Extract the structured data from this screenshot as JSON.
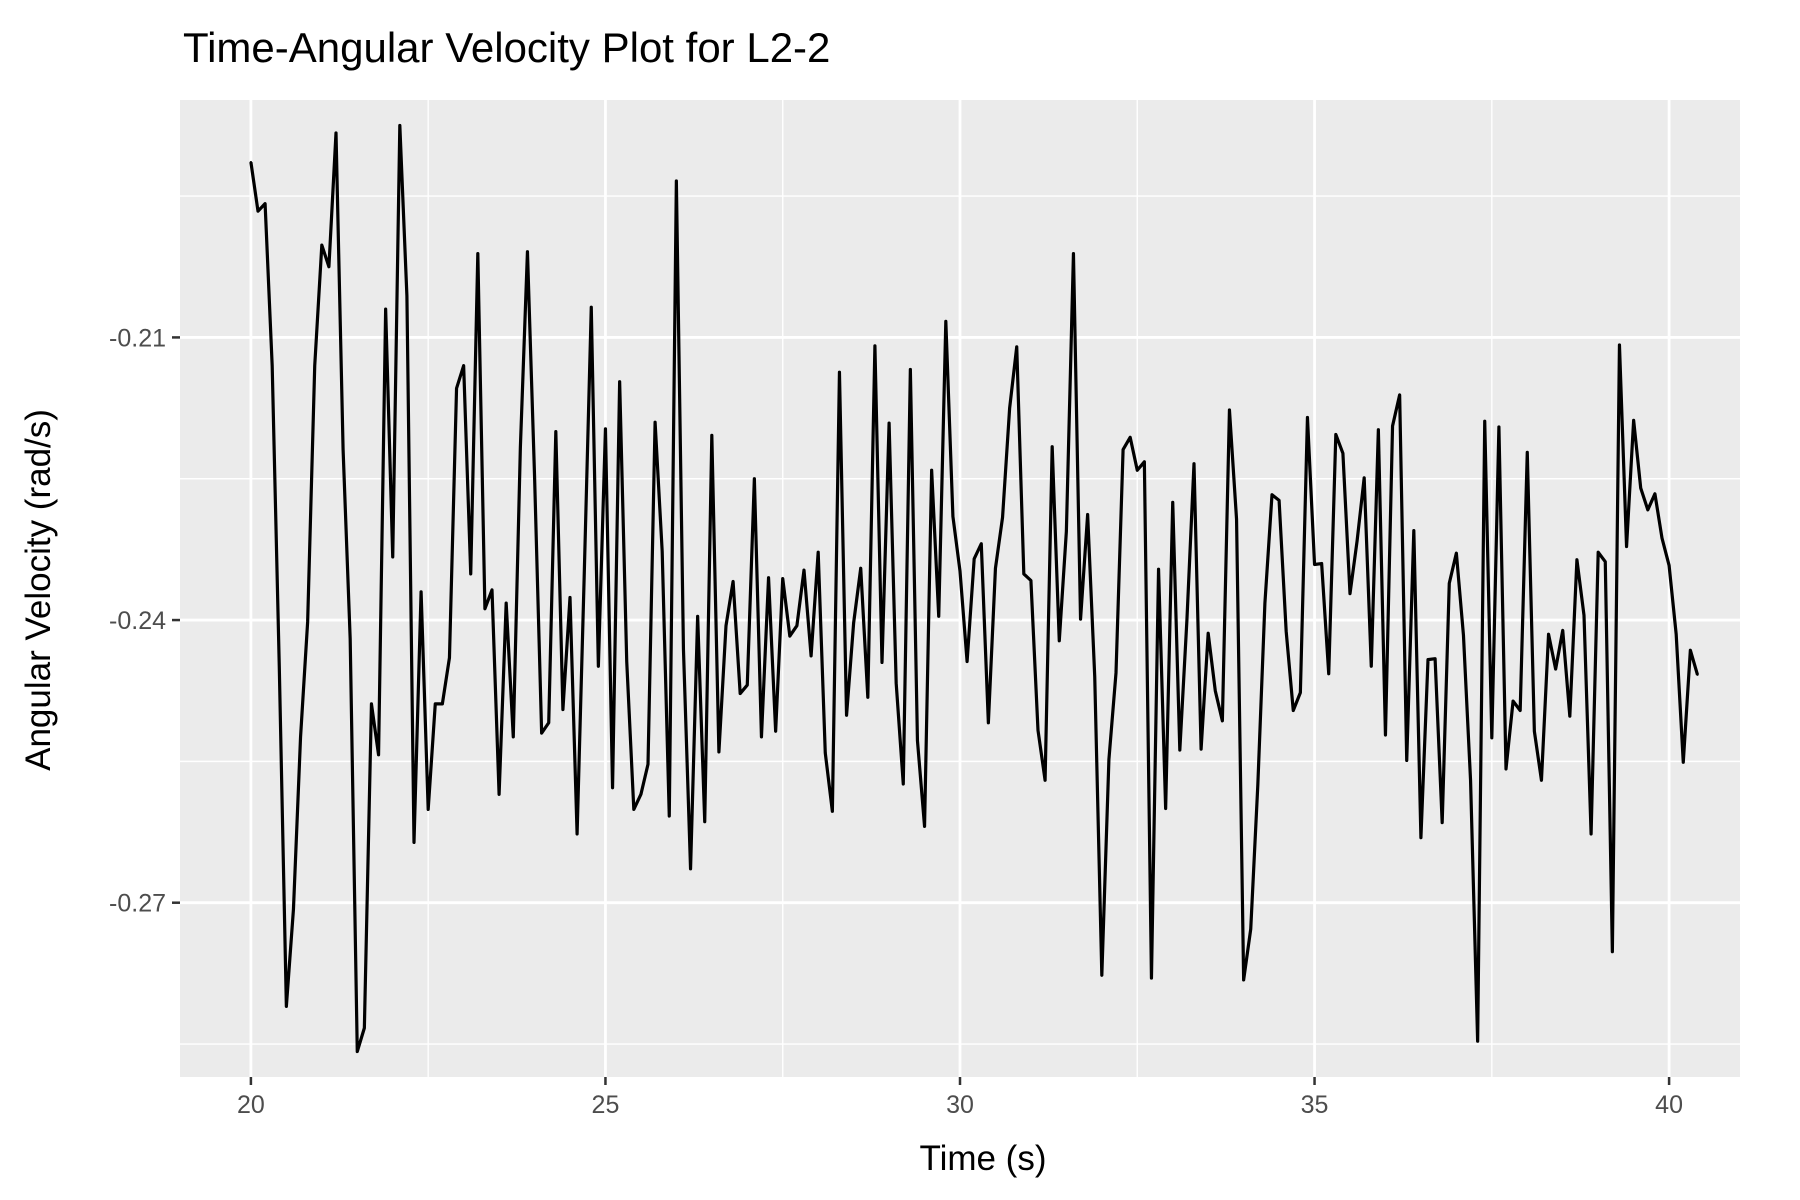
{
  "chart_data": {
    "type": "line",
    "title": "Time-Angular Velocity Plot for L2-2",
    "xlabel": "Time (s)",
    "ylabel": "Angular Velocity (rad/s)",
    "xlim": [
      19.0,
      41.0
    ],
    "ylim": [
      -0.2885,
      -0.1848
    ],
    "x_ticks": [
      20,
      25,
      30,
      35,
      40
    ],
    "x_tick_labels": [
      "20",
      "25",
      "30",
      "35",
      "40"
    ],
    "y_ticks": [
      -0.27,
      -0.24,
      -0.21
    ],
    "y_tick_labels": [
      "-0.27",
      "-0.24",
      "-0.21"
    ],
    "grid": true,
    "colors": {
      "panel": "#ebebeb",
      "grid": "#ffffff",
      "line": "#000000",
      "tick_label": "#4d4d4d"
    },
    "x_start": 20.0,
    "x_step": 0.1,
    "series": [
      {
        "name": "L2-2",
        "values": [
          -0.1914,
          -0.1966,
          -0.1958,
          -0.213,
          -0.2449,
          -0.281,
          -0.2707,
          -0.2524,
          -0.2402,
          -0.213,
          -0.2002,
          -0.2025,
          -0.1883,
          -0.2219,
          -0.242,
          -0.2858,
          -0.2833,
          -0.2489,
          -0.2543,
          -0.207,
          -0.2333,
          -0.1875,
          -0.2056,
          -0.2636,
          -0.237,
          -0.2601,
          -0.2489,
          -0.2489,
          -0.244,
          -0.2154,
          -0.213,
          -0.2351,
          -0.2011,
          -0.2388,
          -0.2368,
          -0.2585,
          -0.2382,
          -0.2524,
          -0.2217,
          -0.2009,
          -0.2247,
          -0.252,
          -0.2509,
          -0.22,
          -0.2495,
          -0.2376,
          -0.2627,
          -0.2354,
          -0.2068,
          -0.2449,
          -0.2197,
          -0.2578,
          -0.2147,
          -0.2444,
          -0.2601,
          -0.2585,
          -0.2553,
          -0.219,
          -0.2327,
          -0.2608,
          -0.1934,
          -0.2431,
          -0.2664,
          -0.2396,
          -0.2614,
          -0.2204,
          -0.254,
          -0.2406,
          -0.2359,
          -0.2478,
          -0.2469,
          -0.225,
          -0.2524,
          -0.2355,
          -0.2518,
          -0.2356,
          -0.2417,
          -0.2406,
          -0.2347,
          -0.2438,
          -0.2328,
          -0.2541,
          -0.2603,
          -0.2137,
          -0.2501,
          -0.2403,
          -0.2345,
          -0.2482,
          -0.2109,
          -0.2445,
          -0.2191,
          -0.2467,
          -0.2574,
          -0.2134,
          -0.2528,
          -0.2619,
          -0.2241,
          -0.2396,
          -0.2083,
          -0.229,
          -0.2348,
          -0.2444,
          -0.2335,
          -0.2319,
          -0.2509,
          -0.2345,
          -0.2291,
          -0.2175,
          -0.211,
          -0.2351,
          -0.2358,
          -0.2517,
          -0.257,
          -0.2216,
          -0.2422,
          -0.2306,
          -0.2011,
          -0.2399,
          -0.2288,
          -0.246,
          -0.2777,
          -0.2548,
          -0.2456,
          -0.2219,
          -0.2206,
          -0.2241,
          -0.2232,
          -0.278,
          -0.2346,
          -0.26,
          -0.2275,
          -0.2538,
          -0.24,
          -0.2234,
          -0.2537,
          -0.2414,
          -0.2475,
          -0.2507,
          -0.2177,
          -0.2293,
          -0.2782,
          -0.2728,
          -0.2575,
          -0.2382,
          -0.2267,
          -0.2273,
          -0.2412,
          -0.2496,
          -0.2477,
          -0.2185,
          -0.2341,
          -0.234,
          -0.2457,
          -0.2203,
          -0.2223,
          -0.2372,
          -0.2316,
          -0.2249,
          -0.2449,
          -0.2198,
          -0.2522,
          -0.2194,
          -0.2161,
          -0.2549,
          -0.2305,
          -0.2631,
          -0.2442,
          -0.2441,
          -0.2615,
          -0.2361,
          -0.2329,
          -0.2416,
          -0.257,
          -0.2847,
          -0.2189,
          -0.2525,
          -0.2195,
          -0.2558,
          -0.2486,
          -0.2496,
          -0.2222,
          -0.2518,
          -0.257,
          -0.2415,
          -0.2452,
          -0.2411,
          -0.2502,
          -0.2336,
          -0.2395,
          -0.2627,
          -0.2328,
          -0.2338,
          -0.2752,
          -0.2108,
          -0.2322,
          -0.2188,
          -0.226,
          -0.2283,
          -0.2266,
          -0.2313,
          -0.2342,
          -0.2415,
          -0.2551,
          -0.2432,
          -0.2458
        ]
      }
    ]
  }
}
